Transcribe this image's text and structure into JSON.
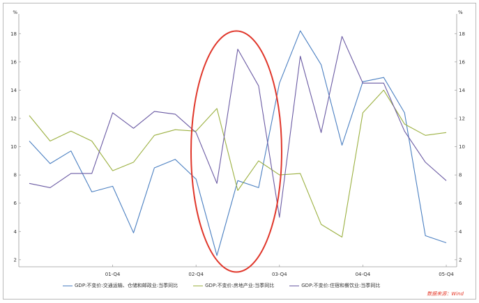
{
  "chart_data": {
    "type": "line",
    "y_unit_left": "%",
    "y_unit_right": "%",
    "ylim": [
      1.5,
      19
    ],
    "yticks": [
      2,
      4,
      6,
      8,
      10,
      12,
      14,
      16,
      18
    ],
    "x_tick_labels": [
      "01-Q4",
      "02-Q4",
      "03-Q4",
      "04-Q4",
      "05-Q4"
    ],
    "x_tick_index": [
      4,
      8,
      12,
      16,
      20
    ],
    "x_count": 21,
    "series": [
      {
        "name": "GDP:不变价:交通运输、仓储和邮政业:当季同比",
        "color": "#4a7fc1",
        "values": [
          10.4,
          8.8,
          9.7,
          6.8,
          7.2,
          3.9,
          8.5,
          9.1,
          7.7,
          2.3,
          7.6,
          7.1,
          14.5,
          18.2,
          15.8,
          10.1,
          14.6,
          14.9,
          12.4,
          3.7,
          3.2
        ]
      },
      {
        "name": "GDP:不变价:房地产业:当季同比",
        "color": "#9bb040",
        "values": [
          12.2,
          10.4,
          11.1,
          10.4,
          8.3,
          8.9,
          10.8,
          11.2,
          11.1,
          12.7,
          6.9,
          9.0,
          8.0,
          8.1,
          4.5,
          3.6,
          12.4,
          14.0,
          11.6,
          10.8,
          11.0
        ]
      },
      {
        "name": "GDP:不变价:住宿和餐饮业:当季同比",
        "color": "#6a5aa3",
        "values": [
          7.4,
          7.1,
          8.1,
          8.1,
          12.4,
          11.3,
          12.5,
          12.3,
          11.0,
          7.4,
          16.9,
          14.3,
          5.0,
          16.4,
          11.0,
          17.8,
          14.5,
          14.5,
          11.1,
          8.9,
          7.6
        ]
      }
    ],
    "annotation": "red-ellipse-highlight",
    "annotation_color": "#e0362a",
    "legend_position": "bottom",
    "grid": false
  },
  "source_text": "数据来源：Wind"
}
